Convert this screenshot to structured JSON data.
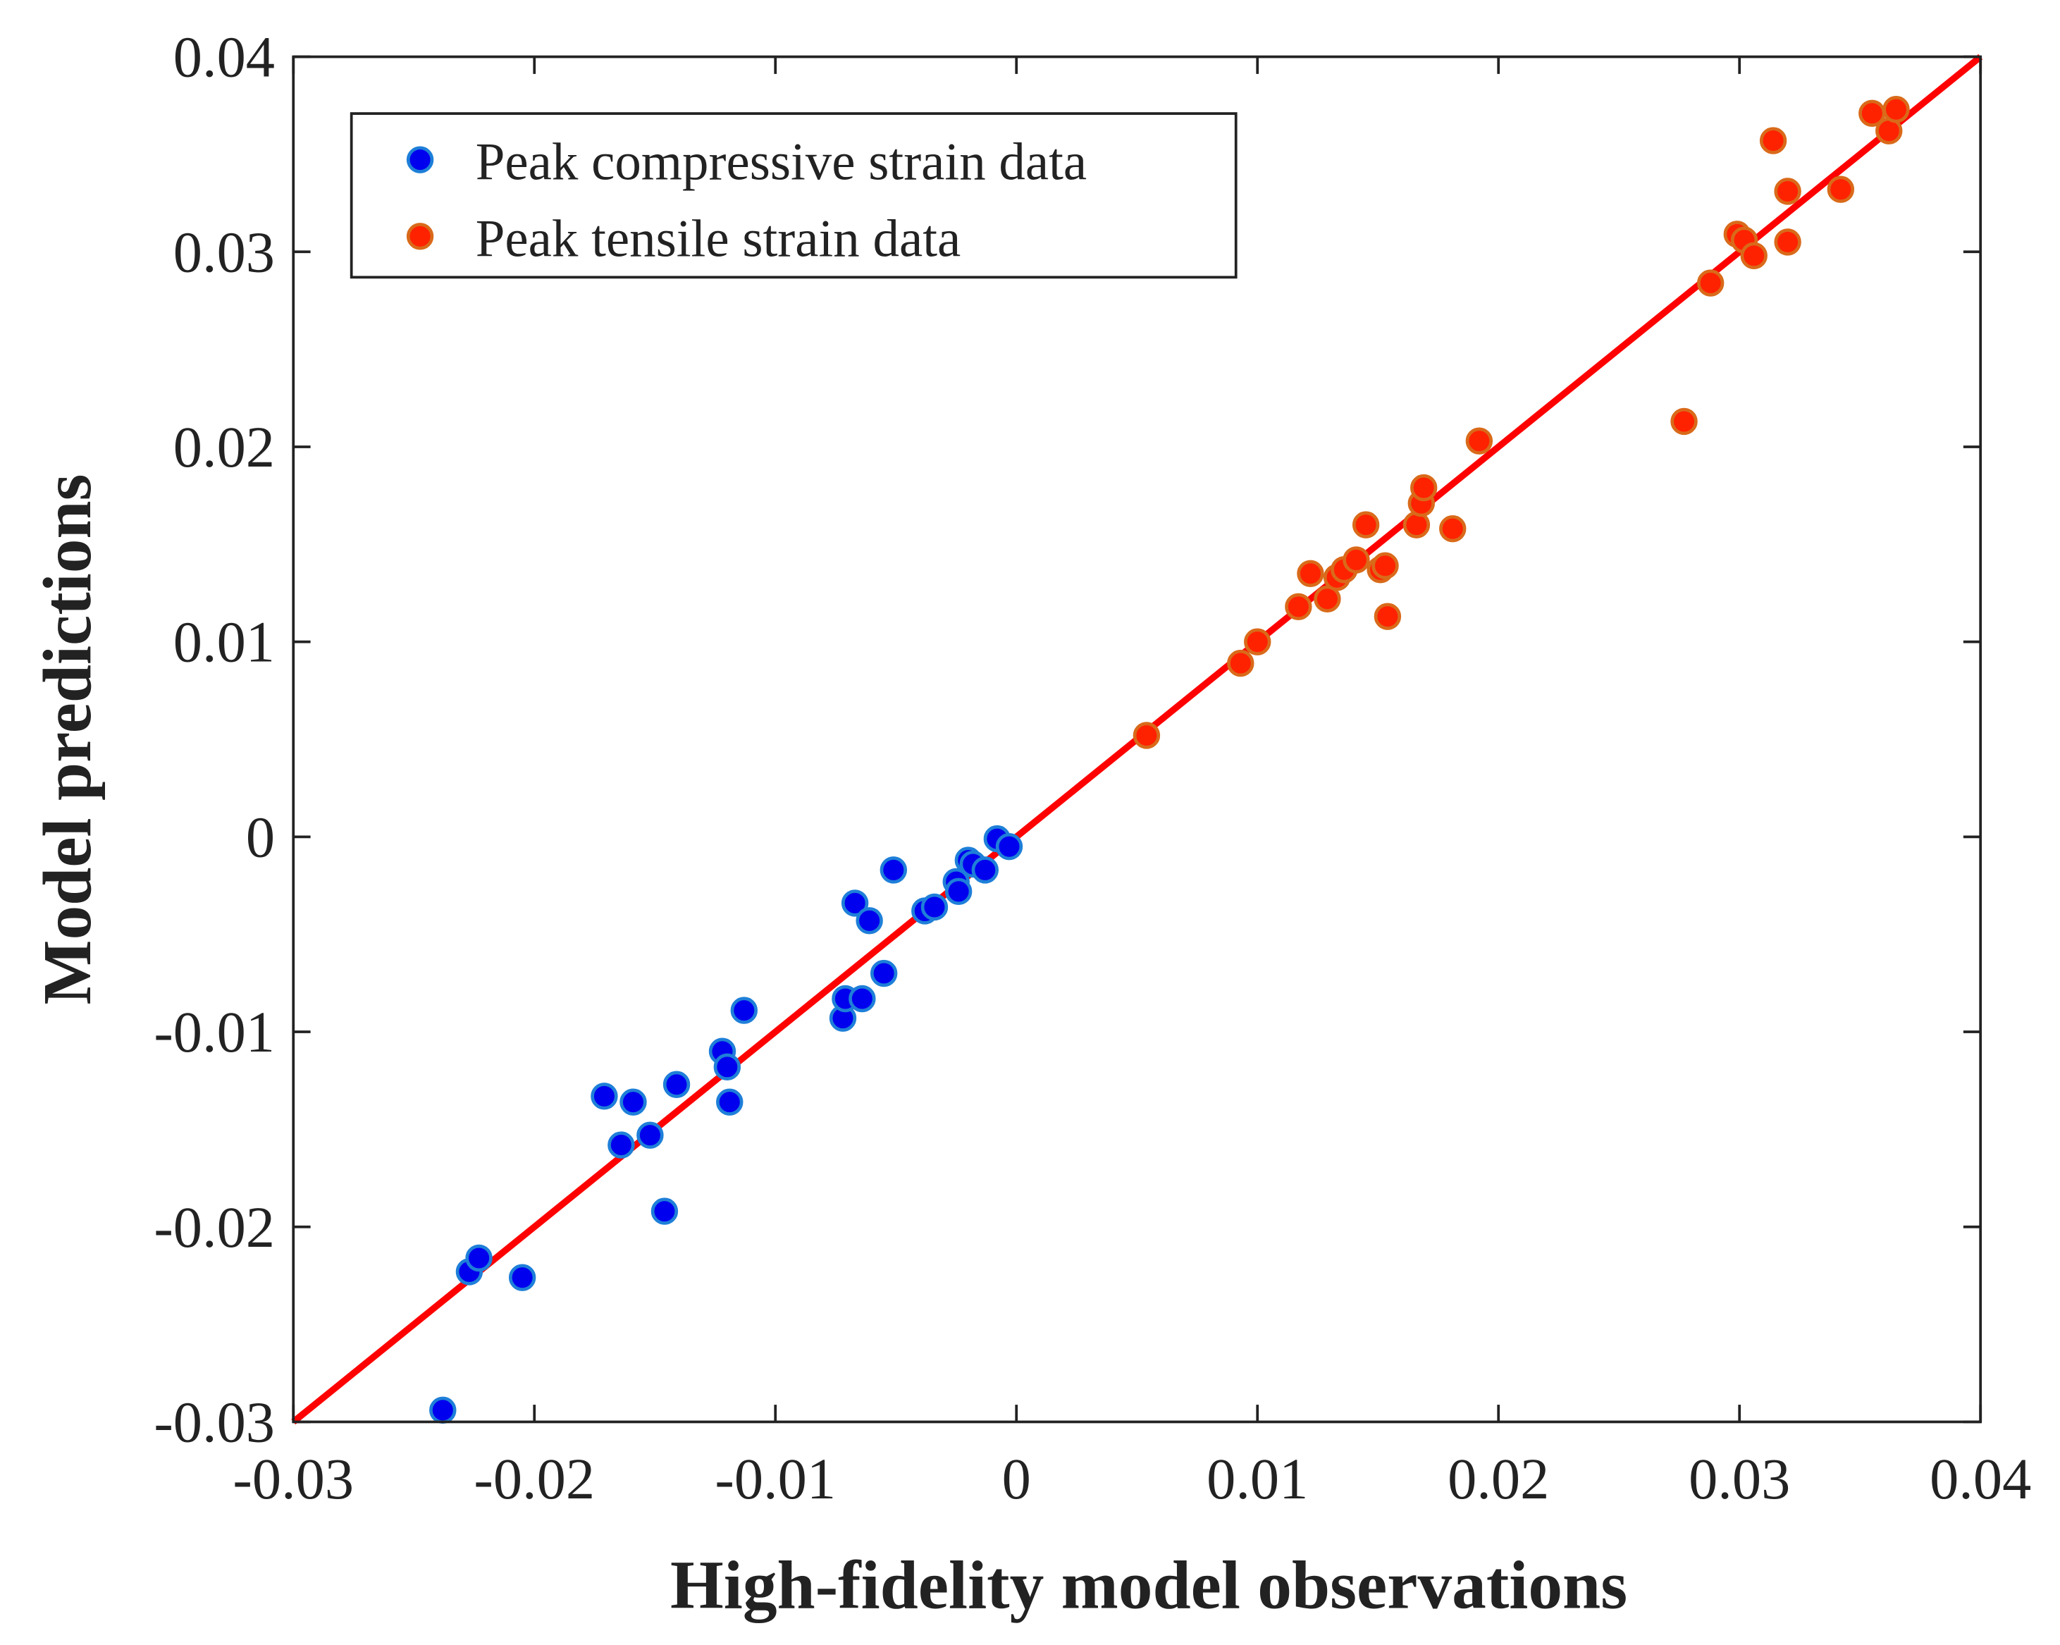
{
  "chart_data": {
    "type": "scatter",
    "title": "",
    "xlabel": "High-fidelity model observations",
    "ylabel": "Model predictions",
    "xlim": [
      -0.03,
      0.04
    ],
    "ylim": [
      -0.03,
      0.04
    ],
    "xticks": [
      "-0.03",
      "-0.02",
      "-0.01",
      "0",
      "0.01",
      "0.02",
      "0.03",
      "0.04"
    ],
    "yticks": [
      "-0.03",
      "-0.02",
      "-0.01",
      "0",
      "0.01",
      "0.02",
      "0.03",
      "0.04"
    ],
    "grid": false,
    "legend_position": "top-left",
    "fit_line": {
      "name": "y = x",
      "color": "#ff0000",
      "x": [
        -0.03,
        0.04
      ],
      "y": [
        -0.03,
        0.04
      ]
    },
    "series": [
      {
        "name": "Peak compressive strain data",
        "color": "#0000ee",
        "edge": "#1e7fd8",
        "points": [
          [
            -0.0238,
            -0.0294
          ],
          [
            -0.0227,
            -0.0223
          ],
          [
            -0.0223,
            -0.0216
          ],
          [
            -0.0205,
            -0.0226
          ],
          [
            -0.0171,
            -0.0133
          ],
          [
            -0.0159,
            -0.0136
          ],
          [
            -0.0164,
            -0.0158
          ],
          [
            -0.0152,
            -0.0153
          ],
          [
            -0.0146,
            -0.0192
          ],
          [
            -0.0141,
            -0.0127
          ],
          [
            -0.0122,
            -0.011
          ],
          [
            -0.012,
            -0.0118
          ],
          [
            -0.0119,
            -0.0136
          ],
          [
            -0.0113,
            -0.0089
          ],
          [
            -0.0072,
            -0.0093
          ],
          [
            -0.0071,
            -0.0083
          ],
          [
            -0.0064,
            -0.0083
          ],
          [
            -0.0067,
            -0.0034
          ],
          [
            -0.0061,
            -0.0043
          ],
          [
            -0.0055,
            -0.007
          ],
          [
            -0.0051,
            -0.0017
          ],
          [
            -0.0038,
            -0.0038
          ],
          [
            -0.0034,
            -0.0036
          ],
          [
            -0.0025,
            -0.0023
          ],
          [
            -0.0024,
            -0.0028
          ],
          [
            -0.002,
            -0.0012
          ],
          [
            -0.0018,
            -0.0014
          ],
          [
            -0.0013,
            -0.0017
          ],
          [
            -0.0008,
            -0.0001
          ],
          [
            -0.0003,
            -0.0005
          ]
        ]
      },
      {
        "name": "Peak tensile strain data",
        "color": "#ff2200",
        "edge": "#d96a1a",
        "points": [
          [
            0.0054,
            0.0052
          ],
          [
            0.0093,
            0.0089
          ],
          [
            0.01,
            0.01
          ],
          [
            0.0117,
            0.0118
          ],
          [
            0.0122,
            0.0135
          ],
          [
            0.0129,
            0.0122
          ],
          [
            0.0133,
            0.0133
          ],
          [
            0.0136,
            0.0137
          ],
          [
            0.0141,
            0.0142
          ],
          [
            0.0145,
            0.016
          ],
          [
            0.0151,
            0.0137
          ],
          [
            0.0153,
            0.0139
          ],
          [
            0.0154,
            0.0113
          ],
          [
            0.0166,
            0.016
          ],
          [
            0.0168,
            0.0171
          ],
          [
            0.0169,
            0.0179
          ],
          [
            0.0181,
            0.0158
          ],
          [
            0.0192,
            0.0203
          ],
          [
            0.0277,
            0.0213
          ],
          [
            0.0288,
            0.0284
          ],
          [
            0.0299,
            0.0309
          ],
          [
            0.0302,
            0.0306
          ],
          [
            0.0306,
            0.0298
          ],
          [
            0.0314,
            0.0357
          ],
          [
            0.032,
            0.0331
          ],
          [
            0.032,
            0.0305
          ],
          [
            0.0342,
            0.0332
          ],
          [
            0.0355,
            0.0371
          ],
          [
            0.0362,
            0.0362
          ],
          [
            0.0365,
            0.0373
          ]
        ]
      }
    ]
  }
}
